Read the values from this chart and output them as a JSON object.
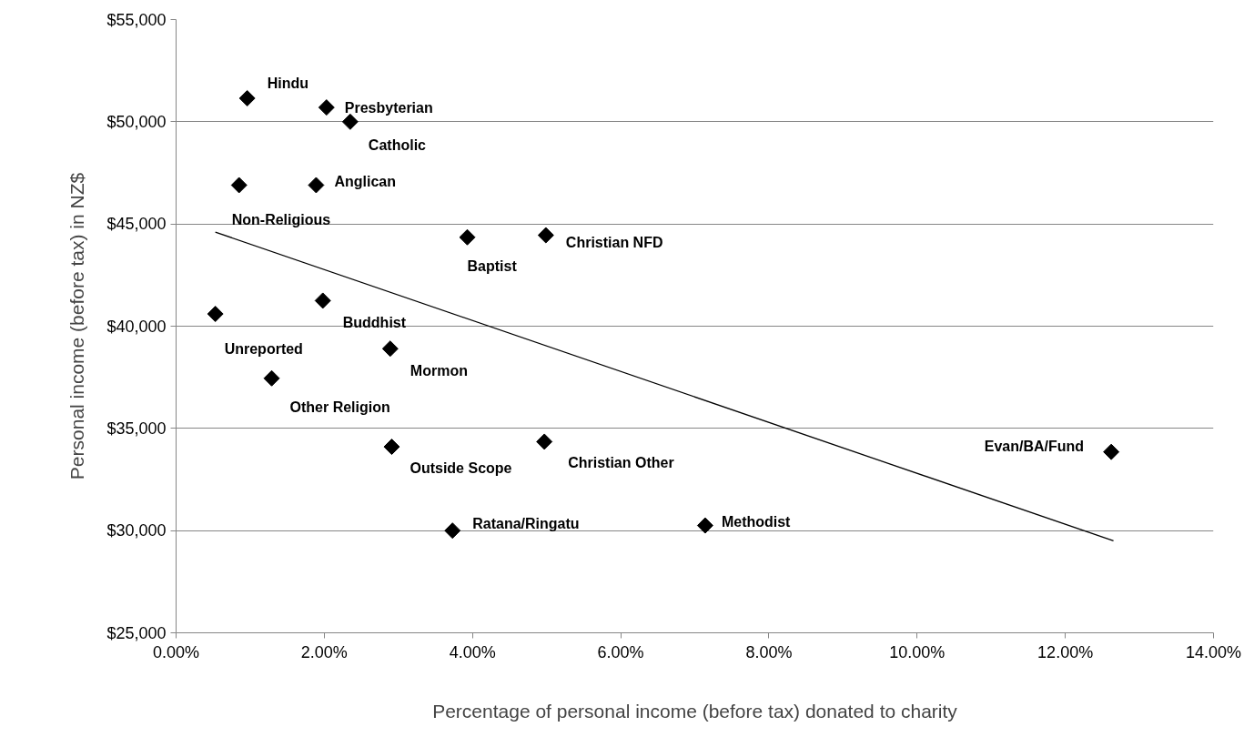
{
  "chart_data": {
    "type": "scatter",
    "xlabel": "Percentage of personal income (before tax) donated to charity",
    "ylabel": "Personal income (before tax) in NZ$",
    "x": [
      0.96,
      2.03,
      2.35,
      0.85,
      1.89,
      3.93,
      4.99,
      1.98,
      0.53,
      2.89,
      1.29,
      2.91,
      4.97,
      3.73,
      7.14,
      12.62
    ],
    "series": [
      {
        "color": "#000000",
        "marker": "diamond",
        "values": [
          51150,
          50700,
          50000,
          46900,
          46900,
          44350,
          44450,
          41250,
          40600,
          38900,
          37450,
          34100,
          34350,
          30000,
          30250,
          33850
        ]
      },
      {
        "type": "line",
        "color": "#000000",
        "marker": "none",
        "x": [
          0.53,
          12.65
        ],
        "values": [
          44600,
          29500
        ]
      }
    ],
    "annotations": [
      {
        "text": "Hindu",
        "x": 0.96,
        "y": 51150
      },
      {
        "text": "Presbyterian",
        "x": 2.03,
        "y": 50700
      },
      {
        "text": "Catholic",
        "x": 2.35,
        "y": 50000
      },
      {
        "text": "Non-Religious",
        "x": 0.85,
        "y": 46900
      },
      {
        "text": "Anglican",
        "x": 1.89,
        "y": 46900
      },
      {
        "text": "Baptist",
        "x": 3.93,
        "y": 44350
      },
      {
        "text": "Christian NFD",
        "x": 4.99,
        "y": 44450
      },
      {
        "text": "Buddhist",
        "x": 1.98,
        "y": 41250
      },
      {
        "text": "Unreported",
        "x": 0.53,
        "y": 40600
      },
      {
        "text": "Mormon",
        "x": 2.89,
        "y": 38900
      },
      {
        "text": "Other Religion",
        "x": 1.29,
        "y": 37450
      },
      {
        "text": "Outside Scope",
        "x": 2.91,
        "y": 34100
      },
      {
        "text": "Christian Other",
        "x": 4.97,
        "y": 34350
      },
      {
        "text": "Ratana/Ringatu",
        "x": 3.73,
        "y": 30000
      },
      {
        "text": "Methodist",
        "x": 7.14,
        "y": 30250
      },
      {
        "text": "Evan/BA/Fund",
        "x": 12.62,
        "y": 33850
      }
    ],
    "xlim": [
      0,
      14
    ],
    "xticks": [
      {
        "value": 0,
        "label": "0.00%"
      },
      {
        "value": 2,
        "label": "2.00%"
      },
      {
        "value": 4,
        "label": "4.00%"
      },
      {
        "value": 6,
        "label": "6.00%"
      },
      {
        "value": 8,
        "label": "8.00%"
      },
      {
        "value": 10,
        "label": "10.00%"
      },
      {
        "value": 12,
        "label": "12.00%"
      },
      {
        "value": 14,
        "label": "14.00%"
      }
    ],
    "ylim": [
      25000,
      55000
    ],
    "yticks": [
      {
        "value": 25000,
        "label": "$25,000"
      },
      {
        "value": 30000,
        "label": "$30,000"
      },
      {
        "value": 35000,
        "label": "$35,000"
      },
      {
        "value": 40000,
        "label": "$40,000"
      },
      {
        "value": 45000,
        "label": "$45,000"
      },
      {
        "value": 50000,
        "label": "$50,000"
      },
      {
        "value": 55000,
        "label": "$55,000"
      }
    ],
    "grid": "y"
  }
}
